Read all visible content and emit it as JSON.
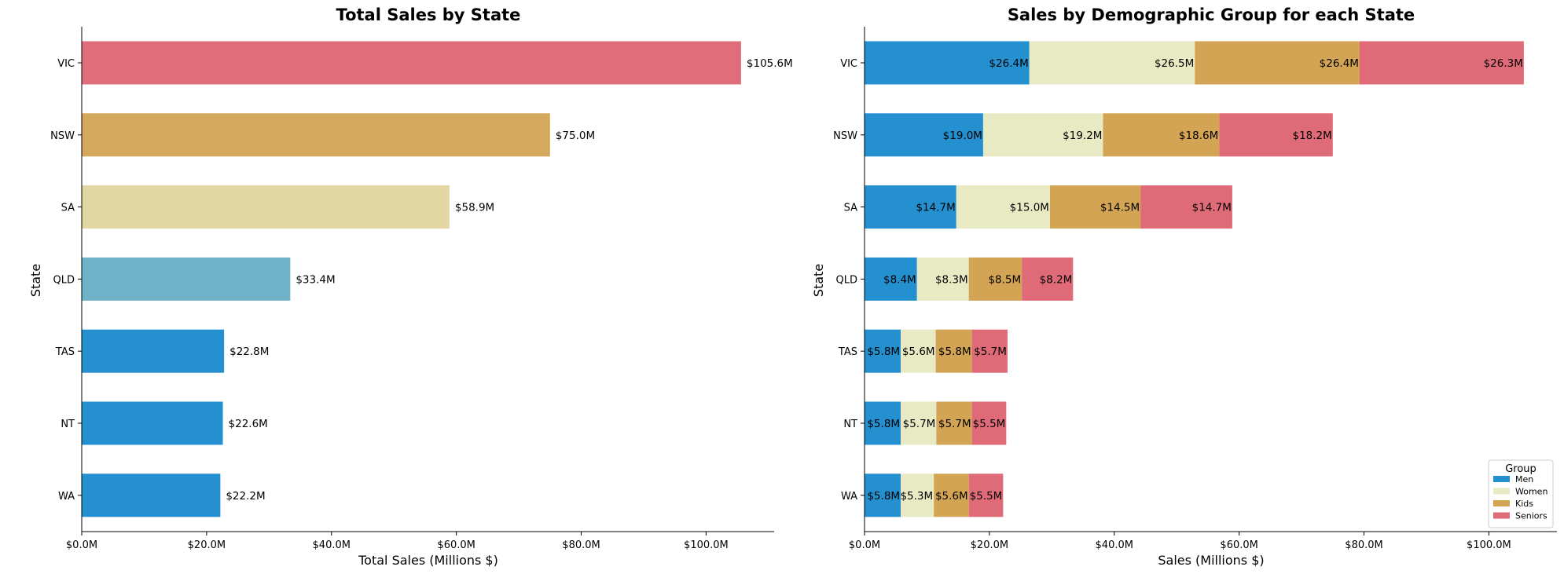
{
  "chart_data": [
    {
      "type": "bar",
      "orientation": "horizontal",
      "title": "Total Sales by State",
      "xlabel": "Total Sales (Millions $)",
      "ylabel": "State",
      "categories": [
        "VIC",
        "NSW",
        "SA",
        "QLD",
        "TAS",
        "NT",
        "WA"
      ],
      "values": [
        105.6,
        75.0,
        58.9,
        33.4,
        22.8,
        22.6,
        22.2
      ],
      "data_labels": [
        "$105.6M",
        "$75.0M",
        "$58.9M",
        "$33.4M",
        "$22.8M",
        "$22.6M",
        "$22.2M"
      ],
      "colors": [
        "#e06e7a",
        "#d4a95e",
        "#e2d6a3",
        "#70b3c9",
        "#2490d0",
        "#2490d0",
        "#2490d0"
      ],
      "xlim": [
        0,
        110.9
      ],
      "xticks": [
        0,
        20,
        40,
        60,
        80,
        100
      ],
      "xtick_labels": [
        "$0.0M",
        "$20.0M",
        "$40.0M",
        "$60.0M",
        "$80.0M",
        "$100.0M"
      ],
      "grid": false
    },
    {
      "type": "bar",
      "orientation": "horizontal",
      "stacked": true,
      "title": "Sales by Demographic Group for each State",
      "xlabel": "Sales (Millions $)",
      "ylabel": "State",
      "categories": [
        "VIC",
        "NSW",
        "SA",
        "QLD",
        "TAS",
        "NT",
        "WA"
      ],
      "series": [
        {
          "name": "Men",
          "color": "#2490d0",
          "values": [
            26.4,
            19.0,
            14.7,
            8.4,
            5.8,
            5.8,
            5.8
          ],
          "labels": [
            "$26.4M",
            "$19.0M",
            "$14.7M",
            "$8.4M",
            "$5.8M",
            "$5.8M",
            "$5.8M"
          ]
        },
        {
          "name": "Women",
          "color": "#e8eac3",
          "values": [
            26.5,
            19.2,
            15.0,
            8.3,
            5.6,
            5.7,
            5.3
          ],
          "labels": [
            "$26.5M",
            "$19.2M",
            "$15.0M",
            "$8.3M",
            "$5.6M",
            "$5.7M",
            "$5.3M"
          ]
        },
        {
          "name": "Kids",
          "color": "#d4a455",
          "values": [
            26.4,
            18.6,
            14.5,
            8.5,
            5.8,
            5.7,
            5.6
          ],
          "labels": [
            "$26.4M",
            "$18.6M",
            "$14.5M",
            "$8.5M",
            "$5.8M",
            "$5.7M",
            "$5.6M"
          ]
        },
        {
          "name": "Seniors",
          "color": "#e06b78",
          "values": [
            26.3,
            18.2,
            14.7,
            8.2,
            5.7,
            5.5,
            5.5
          ],
          "labels": [
            "$26.3M",
            "$18.2M",
            "$14.7M",
            "$8.2M",
            "$5.7M",
            "$5.5M",
            "$5.5M"
          ]
        }
      ],
      "xlim": [
        0,
        110.9
      ],
      "xticks": [
        0,
        20,
        40,
        60,
        80,
        100
      ],
      "xtick_labels": [
        "$0.0M",
        "$20.0M",
        "$40.0M",
        "$60.0M",
        "$80.0M",
        "$100.0M"
      ],
      "legend": {
        "title": "Group",
        "position": "lower-right"
      },
      "grid": false
    }
  ]
}
